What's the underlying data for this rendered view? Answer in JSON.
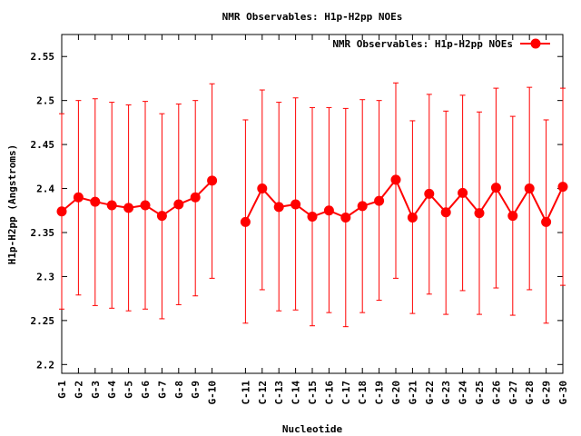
{
  "chart_data": {
    "type": "line",
    "title": "NMR Observables: H1p-H2pp NOEs",
    "xlabel": "Nucleotide",
    "ylabel": "H1p-H2pp (Angstroms)",
    "ylim": [
      2.19,
      2.575
    ],
    "yticks": [
      2.2,
      2.25,
      2.3,
      2.35,
      2.4,
      2.45,
      2.5,
      2.55
    ],
    "ytick_labels": [
      "2.2",
      "2.25",
      "2.3",
      "2.35",
      "2.4",
      "2.45",
      "2.5",
      "2.55"
    ],
    "legend": {
      "position": "top-right"
    },
    "grid": false,
    "line_color": "#ff0000",
    "series": [
      {
        "name": "NMR Observables: H1p-H2pp NOEs",
        "segments": [
          {
            "categories": [
              "G-1",
              "G-2",
              "G-3",
              "G-4",
              "G-5",
              "G-6",
              "G-7",
              "G-8",
              "G-9",
              "G-10"
            ],
            "values": [
              2.374,
              2.39,
              2.385,
              2.381,
              2.378,
              2.381,
              2.369,
              2.382,
              2.39,
              2.409
            ],
            "err_low": [
              2.263,
              2.279,
              2.267,
              2.264,
              2.261,
              2.263,
              2.252,
              2.268,
              2.278,
              2.298
            ],
            "err_high": [
              2.485,
              2.5,
              2.502,
              2.498,
              2.495,
              2.499,
              2.485,
              2.496,
              2.5,
              2.519
            ]
          },
          {
            "categories": [
              "C-11",
              "C-12",
              "C-13",
              "C-14",
              "C-15",
              "C-16",
              "C-17",
              "C-18",
              "C-19",
              "G-20",
              "G-21",
              "G-22",
              "G-23",
              "G-24",
              "G-25",
              "G-26",
              "G-27",
              "G-28",
              "G-29",
              "G-30"
            ],
            "values": [
              2.362,
              2.4,
              2.379,
              2.382,
              2.368,
              2.375,
              2.367,
              2.38,
              2.386,
              2.41,
              2.367,
              2.394,
              2.373,
              2.395,
              2.372,
              2.401,
              2.369,
              2.4,
              2.362,
              2.402
            ],
            "err_low": [
              2.247,
              2.285,
              2.261,
              2.262,
              2.244,
              2.259,
              2.243,
              2.259,
              2.273,
              2.298,
              2.258,
              2.28,
              2.257,
              2.284,
              2.257,
              2.287,
              2.256,
              2.285,
              2.247,
              2.29
            ],
            "err_high": [
              2.478,
              2.512,
              2.498,
              2.503,
              2.492,
              2.492,
              2.491,
              2.501,
              2.5,
              2.52,
              2.477,
              2.507,
              2.488,
              2.506,
              2.487,
              2.514,
              2.482,
              2.515,
              2.478,
              2.514
            ]
          }
        ]
      }
    ]
  }
}
